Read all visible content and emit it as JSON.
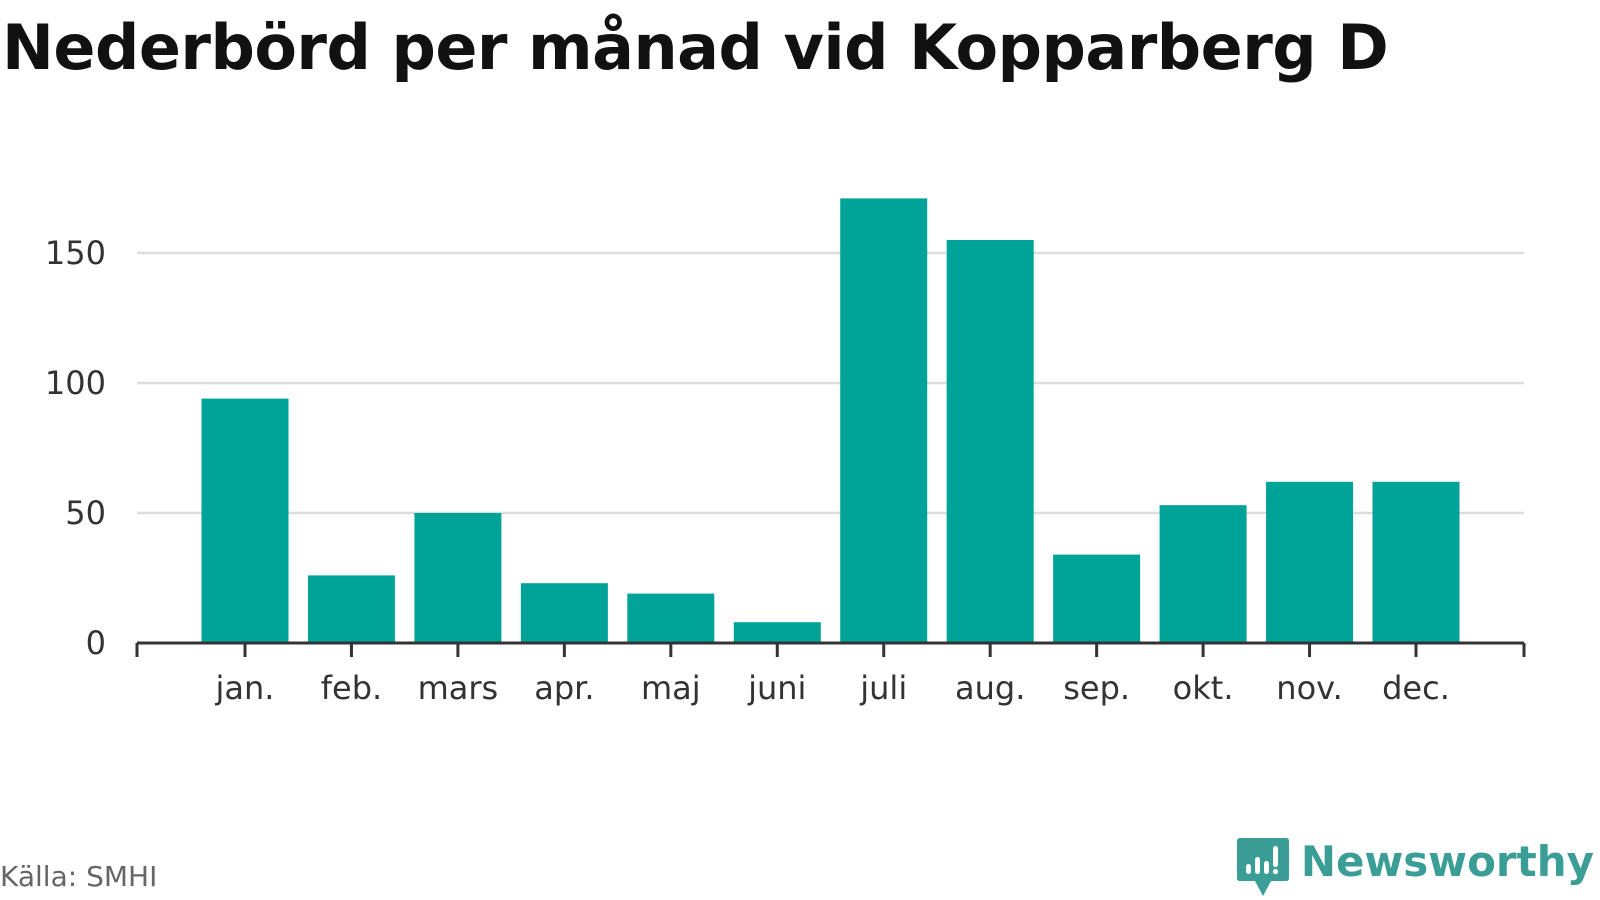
{
  "page": {
    "title": "Nederbörd per månad vid Kopparberg D",
    "source": "Källa: SMHI",
    "brand": "Newsworthy"
  },
  "colors": {
    "bar": "#00a398",
    "grid": "#dddddd",
    "axis": "#333333",
    "brand": "#3a9d96"
  },
  "icons": {
    "brand_logo": "newsworthy-logo-icon"
  },
  "chart_data": {
    "type": "bar",
    "title": "Nederbörd per månad vid Kopparberg D",
    "xlabel": "",
    "ylabel": "",
    "categories": [
      "jan.",
      "feb.",
      "mars",
      "apr.",
      "maj",
      "juni",
      "juli",
      "aug.",
      "sep.",
      "okt.",
      "nov.",
      "dec."
    ],
    "values": [
      94,
      26,
      50,
      23,
      19,
      8,
      171,
      155,
      34,
      53,
      62,
      62
    ],
    "yticks": [
      0,
      50,
      100,
      150
    ],
    "ylim": [
      0,
      175
    ],
    "grid": true,
    "legend": "none"
  }
}
